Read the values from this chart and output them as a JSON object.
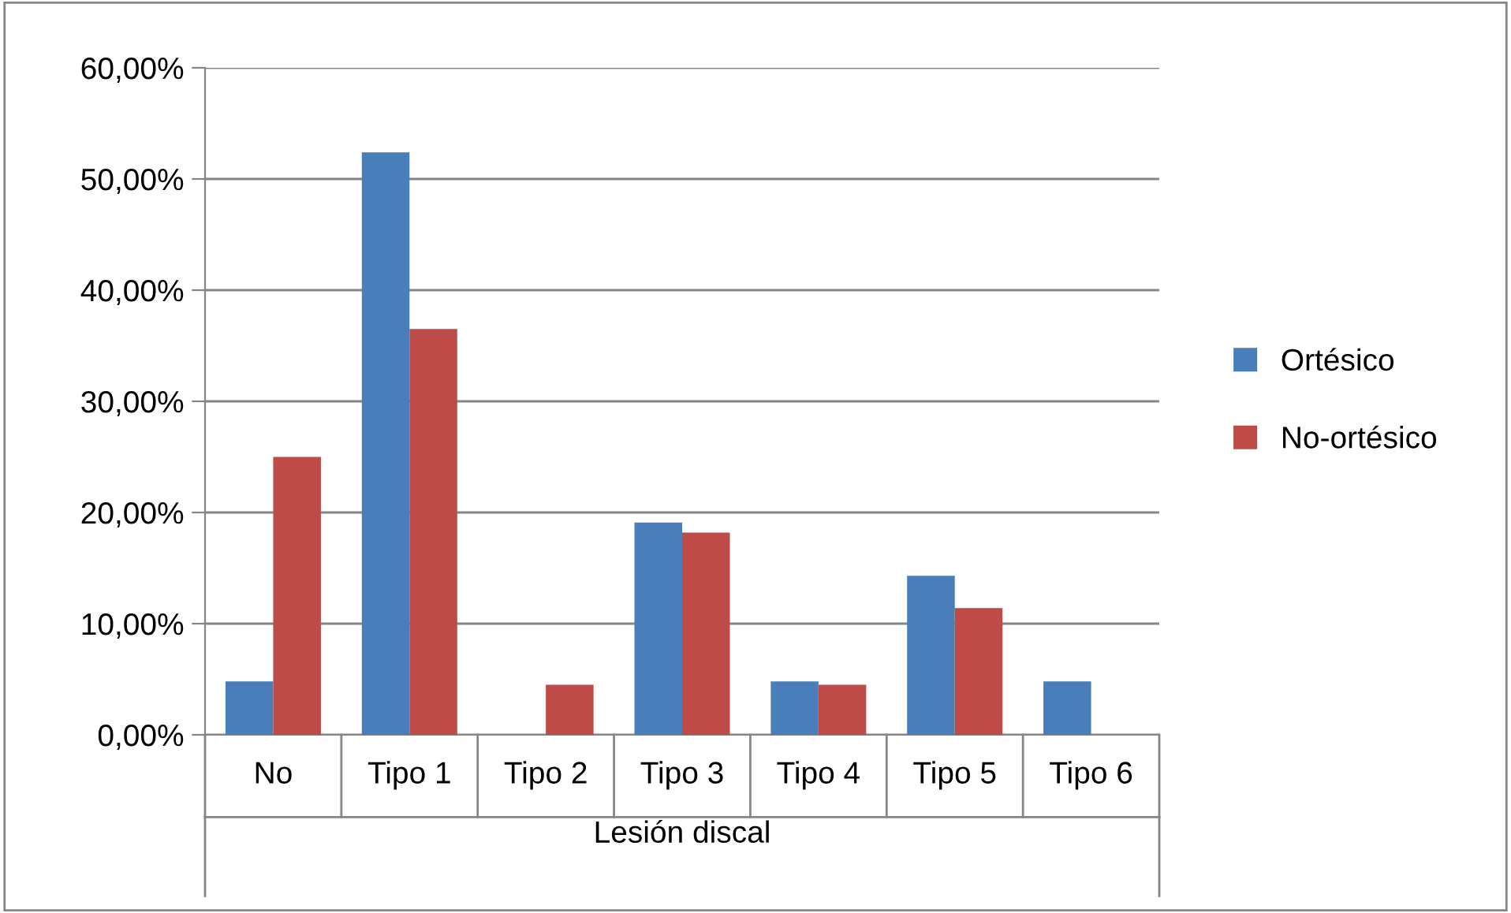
{
  "chart_data": {
    "type": "bar",
    "xlabel": "Lesión discal",
    "categories": [
      "No",
      "Tipo 1",
      "Tipo 2",
      "Tipo 3",
      "Tipo 4",
      "Tipo 5",
      "Tipo 6"
    ],
    "series": [
      {
        "name": "Ortésico",
        "color": "#4a7ebb",
        "values": [
          4.8,
          52.4,
          0,
          19.1,
          4.8,
          14.3,
          4.8
        ]
      },
      {
        "name": "No-ortésico",
        "color": "#be4b48",
        "values": [
          25.0,
          36.5,
          4.5,
          18.2,
          4.5,
          11.4,
          0
        ]
      }
    ],
    "ylim": [
      0,
      60
    ],
    "yticks": [
      {
        "value": 0,
        "label": "0,00%"
      },
      {
        "value": 10,
        "label": "10,00%"
      },
      {
        "value": 20,
        "label": "20,00%"
      },
      {
        "value": 30,
        "label": "30,00%"
      },
      {
        "value": 40,
        "label": "40,00%"
      },
      {
        "value": 50,
        "label": "50,00%"
      },
      {
        "value": 60,
        "label": "60,00%"
      }
    ],
    "grid": "y",
    "legend": "right"
  }
}
